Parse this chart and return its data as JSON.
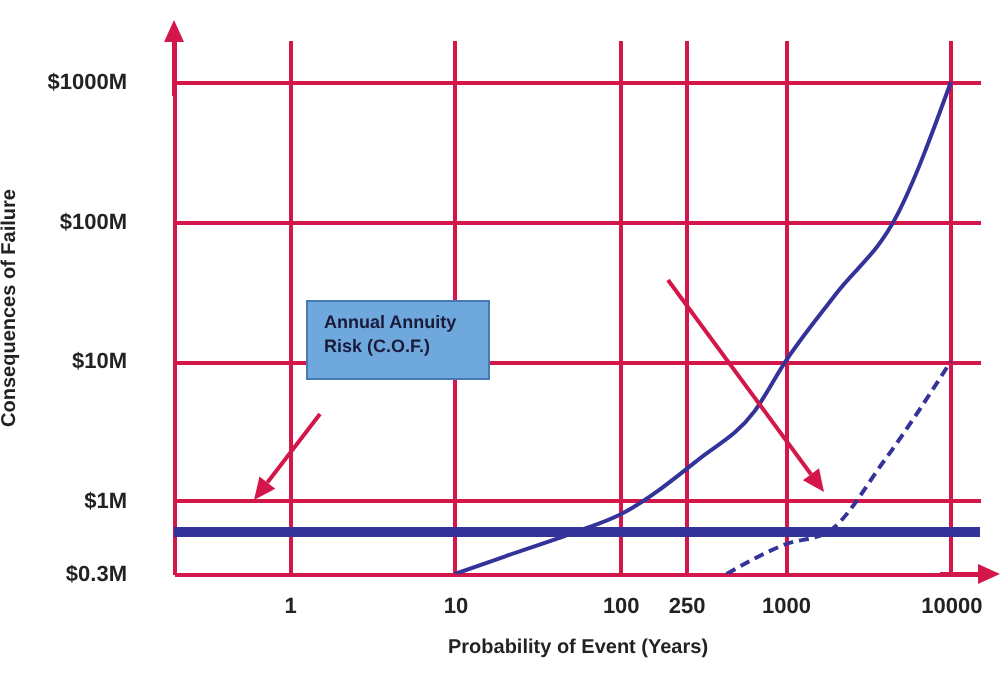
{
  "chart_data": {
    "type": "line",
    "xlabel": "Probability of Event (Years)",
    "ylabel": "Consequences of Failure",
    "annotations": [
      "Annual Annuity Risk (C.O.F.)"
    ],
    "log": "xy",
    "xlim": [
      0.2,
      15000
    ],
    "ylim": [
      0.3,
      2000
    ],
    "xticks": [
      1,
      10,
      100,
      250,
      1000,
      10000
    ],
    "yticks": [
      {
        "value": 0.3,
        "label": "$0.3M"
      },
      {
        "value": 1,
        "label": "$1M"
      },
      {
        "value": 10,
        "label": "$10M"
      },
      {
        "value": 100,
        "label": "$100M"
      },
      {
        "value": 1000,
        "label": "$1000M"
      }
    ],
    "grid": true,
    "series": [
      {
        "color": "#333399",
        "line_style": "solid",
        "x": [
          10,
          20,
          54,
          100,
          300,
          650,
          1000,
          2000,
          4700,
          10000
        ],
        "values": [
          0.3,
          0.4,
          0.6,
          0.8,
          2,
          4.4,
          10,
          30,
          110,
          1000
        ]
      },
      {
        "color": "#333399",
        "line_style": "dashed",
        "x": [
          440,
          1000,
          1800,
          3900,
          10000
        ],
        "values": [
          0.3,
          0.49,
          0.6,
          1.9,
          10
        ]
      }
    ],
    "ref_lines": [
      {
        "axis": "y",
        "value": 0.6,
        "color": "#333399"
      }
    ]
  }
}
